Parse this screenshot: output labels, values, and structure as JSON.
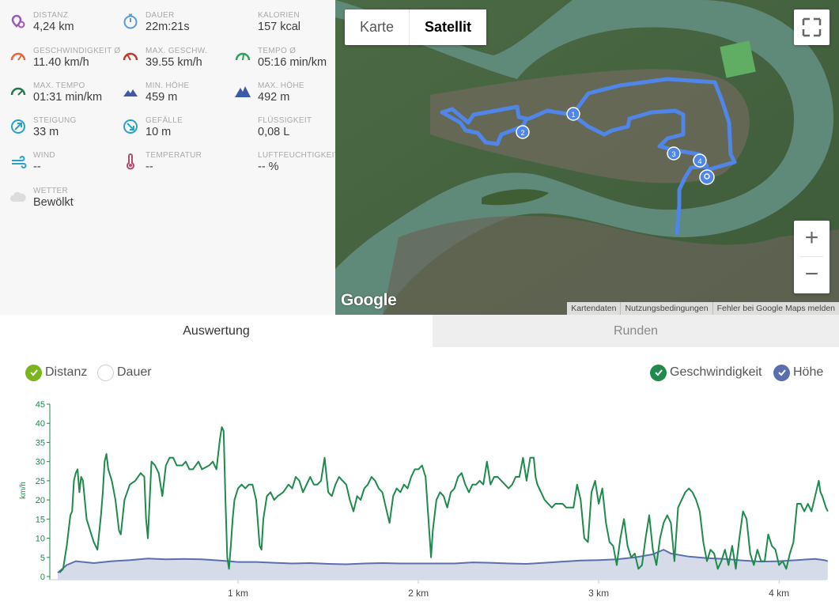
{
  "stats": [
    {
      "key": "distance",
      "label": "DISTANZ",
      "value": "4,24 km",
      "icon": "location-pin-icon",
      "color": "#9b59b6"
    },
    {
      "key": "duration",
      "label": "DAUER",
      "value": "22m:21s",
      "icon": "stopwatch-icon",
      "color": "#5b9bd5"
    },
    {
      "key": "calories",
      "label": "KALORIEN",
      "value": "157 kcal",
      "icon": "flame-icon",
      "color": "#e8643c"
    },
    {
      "key": "avg-speed",
      "label": "GESCHWINDIGKEIT Ø",
      "value": "11.40 km/h",
      "icon": "speedometer-icon",
      "color": "#e8643c"
    },
    {
      "key": "max-speed",
      "label": "MAX. GESCHW.",
      "value": "39.55 km/h",
      "icon": "speedometer-max-icon",
      "color": "#c0392b"
    },
    {
      "key": "avg-pace",
      "label": "TEMPO Ø",
      "value": "05:16 min/km",
      "icon": "pace-gauge-icon",
      "color": "#27a35b"
    },
    {
      "key": "max-pace",
      "label": "MAX. TEMPO",
      "value": "01:31 min/km",
      "icon": "pace-max-icon",
      "color": "#1f7a4a"
    },
    {
      "key": "min-altitude",
      "label": "MIN. HÖHE",
      "value": "459 m",
      "icon": "mountain-low-icon",
      "color": "#3d5aa8"
    },
    {
      "key": "max-altitude",
      "label": "MAX. HÖHE",
      "value": "492 m",
      "icon": "mountain-high-icon",
      "color": "#3d5aa8"
    },
    {
      "key": "ascent",
      "label": "STEIGUNG",
      "value": "33 m",
      "icon": "ascent-icon",
      "color": "#2aa1c9"
    },
    {
      "key": "descent",
      "label": "GEFÄLLE",
      "value": "10 m",
      "icon": "descent-icon",
      "color": "#2aa1c9"
    },
    {
      "key": "liquid",
      "label": "FLÜSSIGKEIT",
      "value": "0,08 L",
      "icon": "water-drop-icon",
      "color": "#8ab4e8"
    },
    {
      "key": "wind",
      "label": "WIND",
      "value": "--",
      "icon": "wind-icon",
      "color": "#2aa1c9"
    },
    {
      "key": "temperature",
      "label": "TEMPERATUR",
      "value": "--",
      "icon": "thermometer-icon",
      "color": "#b54b6c"
    },
    {
      "key": "humidity",
      "label": "LUFTFEUCHTIGKEIT",
      "value": "-- %",
      "icon": "humidity-drops-icon",
      "color": "#8ab4e8"
    },
    {
      "key": "weather",
      "label": "WETTER",
      "value": "Bewölkt",
      "icon": "cloud-icon",
      "color": "#dcdcdc"
    }
  ],
  "map": {
    "type_buttons": [
      "Karte",
      "Satellit"
    ],
    "active_type": "Satellit",
    "zoom_in": "+",
    "zoom_out": "−",
    "logo": "Google",
    "attribution": [
      "Kartendaten",
      "Nutzungsbedingungen",
      "Fehler bei Google Maps melden"
    ],
    "route_markers": [
      "1",
      "2",
      "3",
      "4"
    ],
    "route_color": "#4f86e8"
  },
  "tabs": [
    "Auswertung",
    "Runden"
  ],
  "toggles": {
    "left": [
      {
        "label": "Distanz",
        "checked": true,
        "color": "#7ab51d"
      },
      {
        "label": "Dauer",
        "checked": false,
        "color": "#ffffff"
      }
    ],
    "right": [
      {
        "label": "Geschwindigkeit",
        "checked": true,
        "color": "#1e8a4c"
      },
      {
        "label": "Höhe",
        "checked": true,
        "color": "#5b6fae"
      }
    ]
  },
  "chart_data": {
    "type": "line",
    "x_unit": "km",
    "x_range": [
      0,
      4.3
    ],
    "x_ticks": [
      {
        "value": 1,
        "label": "1 km"
      },
      {
        "value": 2,
        "label": "2 km"
      },
      {
        "value": 3,
        "label": "3 km"
      },
      {
        "value": 4,
        "label": "4 km"
      }
    ],
    "ylabel": "km/h",
    "ylim": [
      0,
      45
    ],
    "y_ticks": [
      0,
      5,
      10,
      15,
      20,
      25,
      30,
      35,
      40,
      45
    ],
    "speed_color": "#1e8a4c",
    "altitude_color": "#5b6fae",
    "altitude_fill": "#d6dbe9",
    "series": [
      {
        "name": "Geschwindigkeit",
        "points": [
          [
            0.01,
            1
          ],
          [
            0.03,
            2
          ],
          [
            0.05,
            8
          ],
          [
            0.07,
            16
          ],
          [
            0.08,
            17
          ],
          [
            0.09,
            25
          ],
          [
            0.1,
            27
          ],
          [
            0.11,
            28
          ],
          [
            0.12,
            22
          ],
          [
            0.13,
            26
          ],
          [
            0.14,
            25
          ],
          [
            0.16,
            15
          ],
          [
            0.18,
            12
          ],
          [
            0.2,
            9
          ],
          [
            0.22,
            7
          ],
          [
            0.24,
            16
          ],
          [
            0.25,
            22
          ],
          [
            0.26,
            30
          ],
          [
            0.27,
            32
          ],
          [
            0.28,
            28
          ],
          [
            0.3,
            25
          ],
          [
            0.32,
            20
          ],
          [
            0.34,
            12
          ],
          [
            0.35,
            11
          ],
          [
            0.37,
            20
          ],
          [
            0.4,
            24
          ],
          [
            0.43,
            25
          ],
          [
            0.46,
            27
          ],
          [
            0.48,
            26
          ],
          [
            0.49,
            15
          ],
          [
            0.5,
            10
          ],
          [
            0.51,
            20
          ],
          [
            0.52,
            30
          ],
          [
            0.54,
            29
          ],
          [
            0.56,
            27
          ],
          [
            0.58,
            21
          ],
          [
            0.6,
            29
          ],
          [
            0.62,
            31
          ],
          [
            0.64,
            31
          ],
          [
            0.66,
            29
          ],
          [
            0.69,
            29
          ],
          [
            0.71,
            30
          ],
          [
            0.73,
            28
          ],
          [
            0.75,
            28
          ],
          [
            0.78,
            30
          ],
          [
            0.8,
            28
          ],
          [
            0.84,
            29
          ],
          [
            0.86,
            30
          ],
          [
            0.88,
            28
          ],
          [
            0.9,
            36
          ],
          [
            0.91,
            39
          ],
          [
            0.92,
            38
          ],
          [
            0.93,
            20
          ],
          [
            0.94,
            5
          ],
          [
            0.95,
            2
          ],
          [
            0.96,
            8
          ],
          [
            0.97,
            15
          ],
          [
            0.98,
            20
          ],
          [
            1.0,
            23
          ],
          [
            1.02,
            24
          ],
          [
            1.04,
            23
          ],
          [
            1.06,
            24
          ],
          [
            1.08,
            24
          ],
          [
            1.1,
            20
          ],
          [
            1.12,
            8
          ],
          [
            1.13,
            7
          ],
          [
            1.14,
            15
          ],
          [
            1.16,
            21
          ],
          [
            1.18,
            22
          ],
          [
            1.2,
            20
          ],
          [
            1.22,
            21
          ],
          [
            1.25,
            22
          ],
          [
            1.28,
            24
          ],
          [
            1.3,
            23
          ],
          [
            1.32,
            26
          ],
          [
            1.34,
            25
          ],
          [
            1.36,
            22
          ],
          [
            1.38,
            24
          ],
          [
            1.4,
            26
          ],
          [
            1.42,
            24
          ],
          [
            1.44,
            24
          ],
          [
            1.46,
            25
          ],
          [
            1.48,
            31
          ],
          [
            1.5,
            22
          ],
          [
            1.52,
            21
          ],
          [
            1.54,
            24
          ],
          [
            1.56,
            26
          ],
          [
            1.58,
            25
          ],
          [
            1.6,
            24
          ],
          [
            1.62,
            20
          ],
          [
            1.64,
            17
          ],
          [
            1.66,
            21
          ],
          [
            1.68,
            20
          ],
          [
            1.7,
            23
          ],
          [
            1.72,
            24
          ],
          [
            1.74,
            26
          ],
          [
            1.76,
            25
          ],
          [
            1.78,
            23
          ],
          [
            1.8,
            22
          ],
          [
            1.82,
            18
          ],
          [
            1.84,
            14
          ],
          [
            1.86,
            21
          ],
          [
            1.88,
            23
          ],
          [
            1.9,
            22
          ],
          [
            1.92,
            24
          ],
          [
            1.94,
            23
          ],
          [
            1.96,
            26
          ],
          [
            1.98,
            28
          ],
          [
            2.0,
            28
          ],
          [
            2.02,
            29
          ],
          [
            2.04,
            26
          ],
          [
            2.06,
            12
          ],
          [
            2.07,
            5
          ],
          [
            2.08,
            12
          ],
          [
            2.1,
            20
          ],
          [
            2.12,
            22
          ],
          [
            2.14,
            21
          ],
          [
            2.16,
            18
          ],
          [
            2.18,
            22
          ],
          [
            2.2,
            23
          ],
          [
            2.22,
            26
          ],
          [
            2.24,
            27
          ],
          [
            2.26,
            24
          ],
          [
            2.28,
            22
          ],
          [
            2.3,
            24
          ],
          [
            2.32,
            24
          ],
          [
            2.34,
            25
          ],
          [
            2.36,
            24
          ],
          [
            2.38,
            30
          ],
          [
            2.4,
            24
          ],
          [
            2.42,
            26
          ],
          [
            2.44,
            26
          ],
          [
            2.46,
            25
          ],
          [
            2.48,
            24
          ],
          [
            2.5,
            23
          ],
          [
            2.52,
            24
          ],
          [
            2.54,
            26
          ],
          [
            2.56,
            26
          ],
          [
            2.58,
            31
          ],
          [
            2.6,
            25
          ],
          [
            2.62,
            31
          ],
          [
            2.64,
            31
          ],
          [
            2.65,
            26
          ],
          [
            2.66,
            24
          ],
          [
            2.68,
            22
          ],
          [
            2.7,
            20
          ],
          [
            2.72,
            19
          ],
          [
            2.74,
            18
          ],
          [
            2.76,
            19
          ],
          [
            2.78,
            19
          ],
          [
            2.8,
            19
          ],
          [
            2.82,
            18
          ],
          [
            2.84,
            18
          ],
          [
            2.86,
            18
          ],
          [
            2.88,
            24
          ],
          [
            2.9,
            20
          ],
          [
            2.92,
            10
          ],
          [
            2.94,
            9
          ],
          [
            2.96,
            22
          ],
          [
            2.98,
            25
          ],
          [
            3.0,
            19
          ],
          [
            3.02,
            23
          ],
          [
            3.04,
            14
          ],
          [
            3.06,
            9
          ],
          [
            3.08,
            8
          ],
          [
            3.1,
            3
          ],
          [
            3.12,
            10
          ],
          [
            3.14,
            15
          ],
          [
            3.16,
            8
          ],
          [
            3.18,
            5
          ],
          [
            3.2,
            6
          ],
          [
            3.22,
            2
          ],
          [
            3.24,
            3
          ],
          [
            3.26,
            10
          ],
          [
            3.28,
            16
          ],
          [
            3.3,
            7
          ],
          [
            3.32,
            3
          ],
          [
            3.34,
            10
          ],
          [
            3.36,
            14
          ],
          [
            3.38,
            16
          ],
          [
            3.4,
            14
          ],
          [
            3.42,
            4
          ],
          [
            3.44,
            18
          ],
          [
            3.46,
            20
          ],
          [
            3.48,
            22
          ],
          [
            3.5,
            23
          ],
          [
            3.52,
            22
          ],
          [
            3.54,
            20
          ],
          [
            3.56,
            17
          ],
          [
            3.58,
            9
          ],
          [
            3.6,
            4
          ],
          [
            3.62,
            7
          ],
          [
            3.64,
            6
          ],
          [
            3.66,
            2
          ],
          [
            3.68,
            4
          ],
          [
            3.7,
            7
          ],
          [
            3.72,
            3
          ],
          [
            3.74,
            8
          ],
          [
            3.76,
            2
          ],
          [
            3.78,
            10
          ],
          [
            3.8,
            17
          ],
          [
            3.82,
            15
          ],
          [
            3.84,
            6
          ],
          [
            3.86,
            3
          ],
          [
            3.88,
            7
          ],
          [
            3.9,
            4
          ],
          [
            3.92,
            4
          ],
          [
            3.94,
            11
          ],
          [
            3.96,
            8
          ],
          [
            3.98,
            7
          ],
          [
            4.0,
            3
          ],
          [
            4.02,
            4
          ],
          [
            4.04,
            2
          ],
          [
            4.06,
            6
          ],
          [
            4.08,
            9
          ],
          [
            4.1,
            19
          ],
          [
            4.12,
            19
          ],
          [
            4.14,
            17
          ],
          [
            4.16,
            19
          ],
          [
            4.18,
            17
          ],
          [
            4.2,
            21
          ],
          [
            4.22,
            25
          ],
          [
            4.23,
            22
          ],
          [
            4.24,
            21
          ],
          [
            4.26,
            18
          ],
          [
            4.27,
            17
          ]
        ]
      },
      {
        "name": "Höhe",
        "points": [
          [
            0.0,
            1
          ],
          [
            0.05,
            3
          ],
          [
            0.1,
            4
          ],
          [
            0.2,
            3.5
          ],
          [
            0.3,
            4
          ],
          [
            0.4,
            4.3
          ],
          [
            0.5,
            4.7
          ],
          [
            0.6,
            4.5
          ],
          [
            0.7,
            4.6
          ],
          [
            0.8,
            4.5
          ],
          [
            0.9,
            4.2
          ],
          [
            1.0,
            3.8
          ],
          [
            1.1,
            3.8
          ],
          [
            1.2,
            3.6
          ],
          [
            1.3,
            3.4
          ],
          [
            1.4,
            3.5
          ],
          [
            1.5,
            3.3
          ],
          [
            1.6,
            3.2
          ],
          [
            1.7,
            3.4
          ],
          [
            1.8,
            3.5
          ],
          [
            1.9,
            3.4
          ],
          [
            2.0,
            3.4
          ],
          [
            2.1,
            3.4
          ],
          [
            2.2,
            3.4
          ],
          [
            2.3,
            3.7
          ],
          [
            2.4,
            3.6
          ],
          [
            2.5,
            3.4
          ],
          [
            2.6,
            3.3
          ],
          [
            2.7,
            3.6
          ],
          [
            2.8,
            3.9
          ],
          [
            2.9,
            4.2
          ],
          [
            3.0,
            4.3
          ],
          [
            3.1,
            4.5
          ],
          [
            3.2,
            5
          ],
          [
            3.3,
            5.8
          ],
          [
            3.36,
            7
          ],
          [
            3.4,
            6
          ],
          [
            3.5,
            5.2
          ],
          [
            3.6,
            4.8
          ],
          [
            3.7,
            4.6
          ],
          [
            3.8,
            4.2
          ],
          [
            3.9,
            3.9
          ],
          [
            4.0,
            4
          ],
          [
            4.1,
            4.3
          ],
          [
            4.2,
            4.6
          ],
          [
            4.25,
            4.3
          ],
          [
            4.27,
            4
          ]
        ]
      }
    ]
  }
}
